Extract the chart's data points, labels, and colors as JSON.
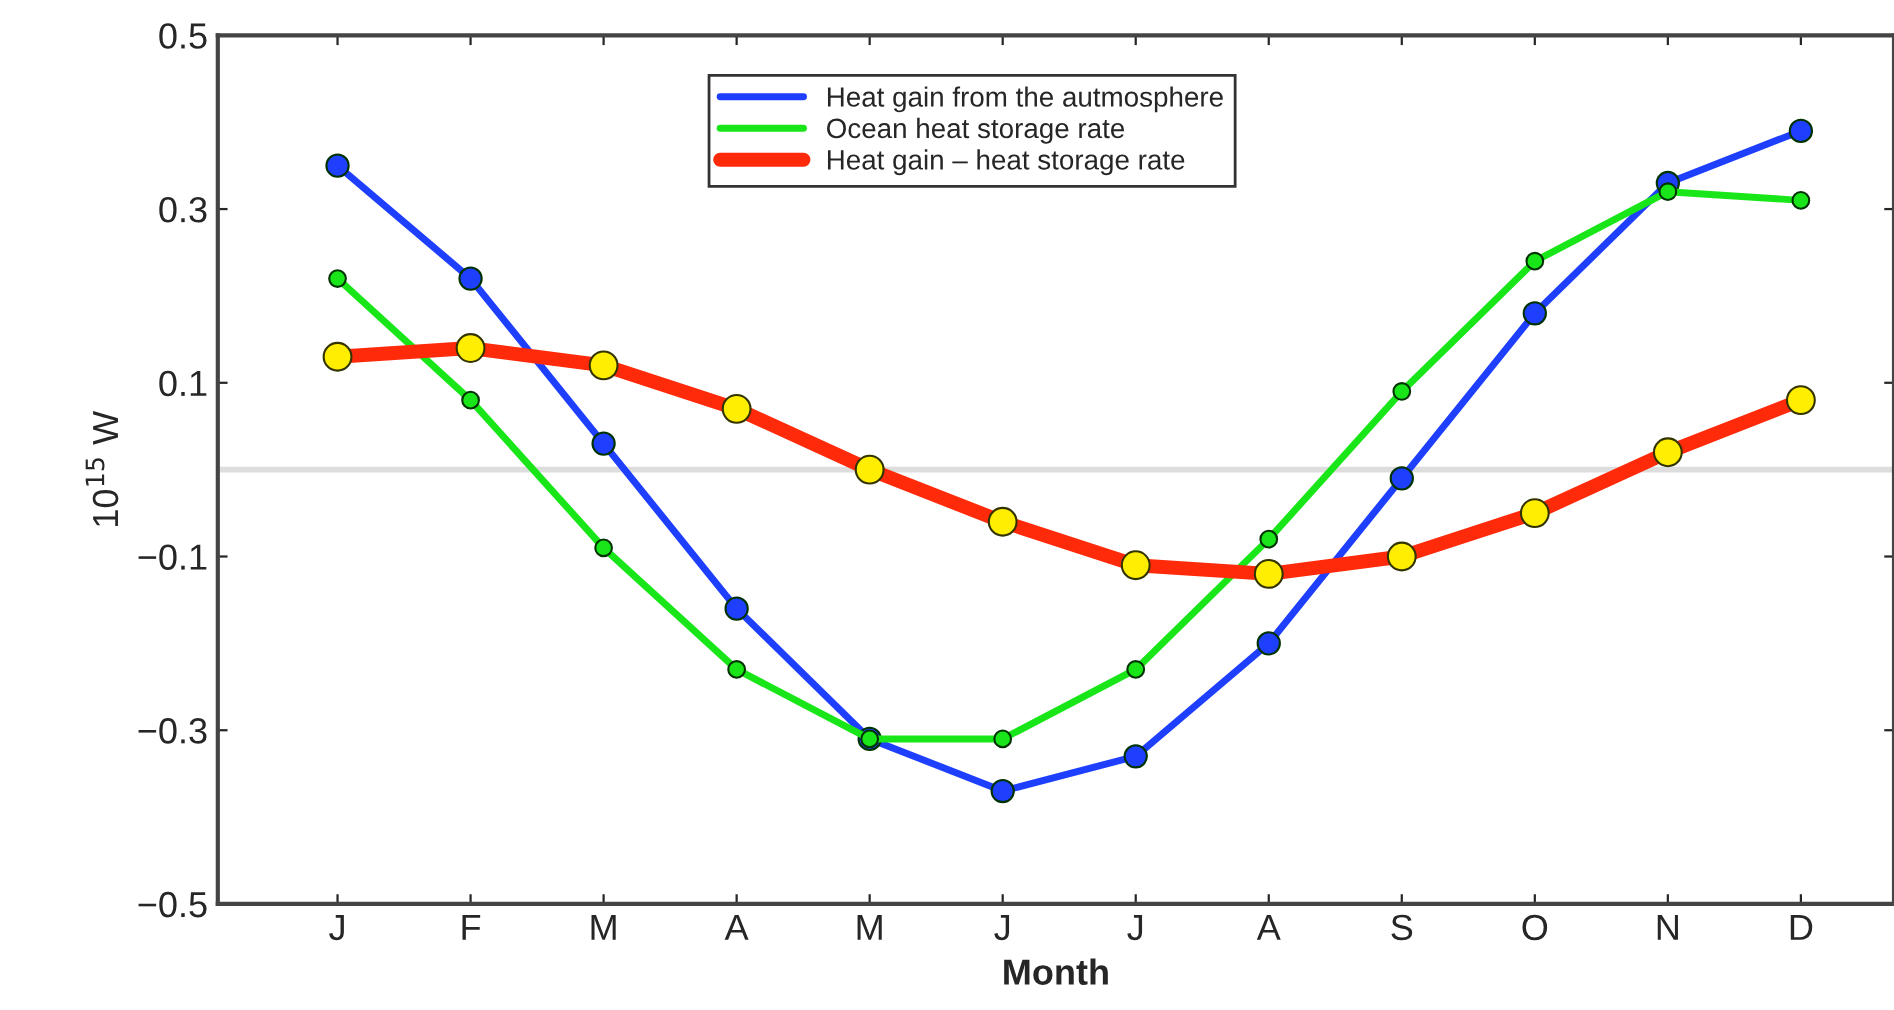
{
  "chart_data": {
    "type": "line",
    "xlabel": "Month",
    "ylabel": "10$^{15}$ W",
    "categories": [
      "J",
      "F",
      "M",
      "A",
      "M",
      "J",
      "J",
      "A",
      "S",
      "O",
      "N",
      "D"
    ],
    "series": [
      {
        "name": "Heat gain from the autmosphere",
        "color": "#1f3fff",
        "values": [
          0.35,
          0.22,
          0.03,
          -0.16,
          -0.31,
          -0.37,
          -0.33,
          -0.2,
          -0.01,
          0.18,
          0.33,
          0.39
        ]
      },
      {
        "name": "Ocean heat storage rate",
        "color": "#19e619",
        "values": [
          0.22,
          0.08,
          -0.09,
          -0.23,
          -0.31,
          -0.31,
          -0.23,
          -0.08,
          0.09,
          0.24,
          0.32,
          0.31
        ]
      },
      {
        "name": "Heat gain – heat storage rate",
        "color": "#ff2a0a",
        "values": [
          0.13,
          0.14,
          0.12,
          0.07,
          0.0,
          -0.06,
          -0.11,
          -0.12,
          -0.1,
          -0.05,
          0.02,
          0.08
        ]
      }
    ],
    "ylim": [
      -0.5,
      0.5
    ],
    "yticks": [
      {
        "value": -0.5,
        "label": "−0.5"
      },
      {
        "value": -0.3,
        "label": "−0.3"
      },
      {
        "value": -0.1,
        "label": "−0.1"
      },
      0.1,
      0.3,
      0.5
    ],
    "ref_lines": [
      {
        "axis": "y",
        "value": 0,
        "color": "#dddddd"
      }
    ],
    "legend": "top",
    "marker": "circle",
    "line_style": "solid",
    "grid": false
  }
}
